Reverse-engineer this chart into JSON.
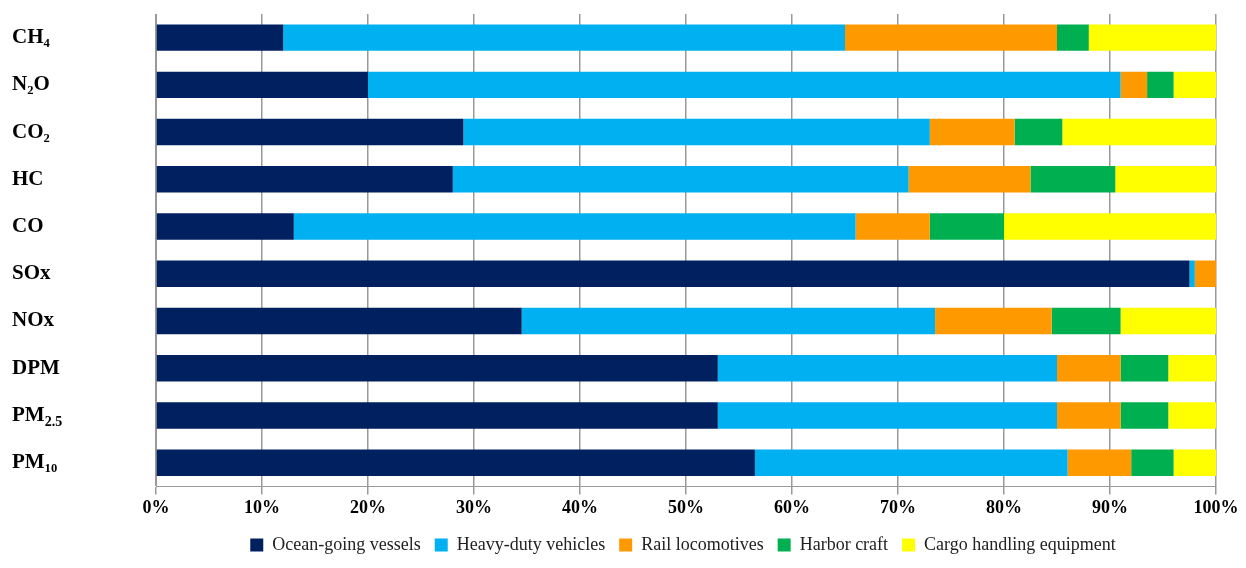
{
  "chart_data": {
    "type": "bar",
    "orientation": "horizontal",
    "stacked": true,
    "categories": [
      "CH₄",
      "N₂O",
      "CO₂",
      "HC",
      "CO",
      "SOx",
      "NOx",
      "DPM",
      "PM$_{2.5}$",
      "PM₁₀"
    ],
    "series": [
      {
        "name": "Ocean-going vessels",
        "color": "#002060",
        "values": [
          12,
          20,
          29,
          28,
          13,
          97.5,
          34.5,
          53,
          53,
          56.5
        ]
      },
      {
        "name": "Heavy-duty vehicles",
        "color": "#00b0f0",
        "values": [
          53,
          71,
          44,
          43,
          53,
          0.5,
          39,
          32,
          32,
          29.5
        ]
      },
      {
        "name": "Rail locomotives",
        "color": "#ff9900",
        "values": [
          20,
          2.5,
          8,
          11.5,
          7,
          2,
          11,
          6,
          6,
          6
        ]
      },
      {
        "name": "Harbor craft",
        "color": "#00b050",
        "values": [
          3,
          2.5,
          4.5,
          8,
          7,
          0,
          6.5,
          4.5,
          4.5,
          4
        ]
      },
      {
        "name": "Cargo handling equipment",
        "color": "#ffff00",
        "values": [
          12,
          4,
          14.5,
          9.5,
          20,
          0,
          9,
          4.5,
          4.5,
          4
        ]
      }
    ],
    "xlim": [
      0,
      100
    ],
    "xticks": [
      {
        "value": 0,
        "label": "0%"
      },
      {
        "value": 10,
        "label": "10%"
      },
      {
        "value": 20,
        "label": "20%"
      },
      {
        "value": 30,
        "label": "30%"
      },
      {
        "value": 40,
        "label": "40%"
      },
      {
        "value": 50,
        "label": "50%"
      },
      {
        "value": 60,
        "label": "60%"
      },
      {
        "value": 70,
        "label": "70%"
      },
      {
        "value": 80,
        "label": "80%"
      },
      {
        "value": 90,
        "label": "90%"
      },
      {
        "value": 100,
        "label": "100%"
      }
    ],
    "grid": "x",
    "legend": "bottom"
  }
}
